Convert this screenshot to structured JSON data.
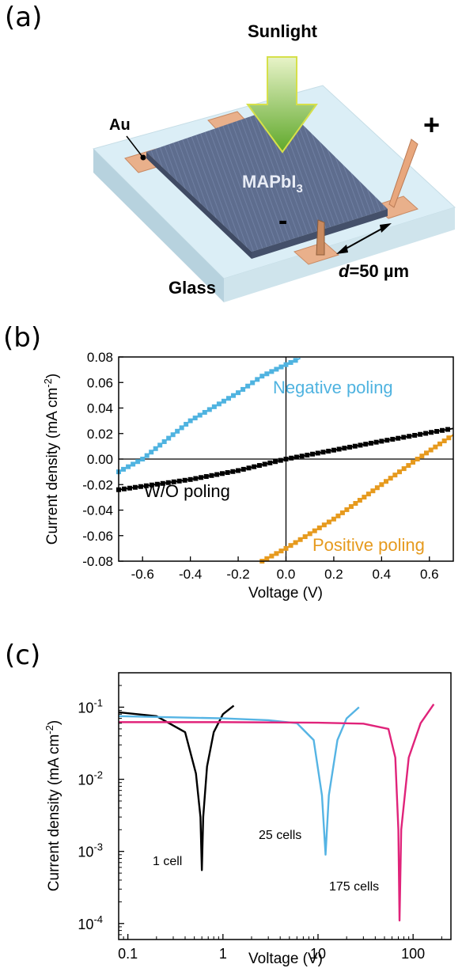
{
  "panel_a": {
    "label": "(a)",
    "sunlight": "Sunlight",
    "au": "Au",
    "material_main": "MAPbI",
    "material_sub": "3",
    "plus": "+",
    "minus": "-",
    "distance_prefix": "d",
    "distance_value": "=50 µm",
    "glass": "Glass",
    "colors": {
      "glass_top": "#dbeef5",
      "glass_side": "#b9d3dd",
      "film": "#5a6a8c",
      "film_side": "#46526c",
      "gold": "#e8b08a",
      "arrow": "#8dc63f",
      "probe": "#e6a77c"
    }
  },
  "panel_b": {
    "label": "(b)",
    "chart_data": {
      "type": "line",
      "xlabel": "Voltage (V)",
      "ylabel_main": "Current density (mA cm",
      "ylabel_sup": "-2",
      "ylabel_end": ")",
      "xlim": [
        -0.7,
        0.7
      ],
      "ylim": [
        -0.08,
        0.08
      ],
      "xticks": [
        "-0.6",
        "-0.4",
        "-0.2",
        "0.0",
        "0.2",
        "0.4",
        "0.6"
      ],
      "xtick_values": [
        -0.6,
        -0.4,
        -0.2,
        0.0,
        0.2,
        0.4,
        0.6
      ],
      "yticks": [
        "0.08",
        "0.06",
        "0.04",
        "0.02",
        "0.00",
        "-0.02",
        "-0.04",
        "-0.06",
        "-0.08"
      ],
      "ytick_values": [
        0.08,
        0.06,
        0.04,
        0.02,
        0.0,
        -0.02,
        -0.04,
        -0.06,
        -0.08
      ],
      "series": [
        {
          "name": "Negative poling",
          "color": "#4fb3e0",
          "x": [
            -0.7,
            -0.6,
            -0.4,
            -0.2,
            -0.1,
            0.0,
            0.06
          ],
          "y": [
            -0.01,
            0.0,
            0.03,
            0.052,
            0.065,
            0.074,
            0.079
          ]
        },
        {
          "name": "W/O poling",
          "color": "#000000",
          "x": [
            -0.7,
            -0.4,
            -0.2,
            0.0,
            0.2,
            0.4,
            0.7
          ],
          "y": [
            -0.024,
            -0.016,
            -0.009,
            0.0,
            0.007,
            0.014,
            0.024
          ]
        },
        {
          "name": "Positive poling",
          "color": "#e69a1e",
          "x": [
            -0.1,
            0.0,
            0.2,
            0.4,
            0.55,
            0.7
          ],
          "y": [
            -0.08,
            -0.07,
            -0.047,
            -0.02,
            0.0,
            0.019
          ]
        }
      ]
    }
  },
  "panel_c": {
    "label": "(c)",
    "chart_data": {
      "type": "line",
      "xscale": "log",
      "yscale": "log",
      "xlabel": "Voltage (V)",
      "ylabel_main": "Current density (mA cm",
      "ylabel_sup": "-2",
      "ylabel_end": ")",
      "xlim": [
        0.08,
        250
      ],
      "ylim": [
        6e-05,
        0.3
      ],
      "xticks": [
        "0.1",
        "1",
        "10",
        "100"
      ],
      "xtick_values": [
        0.1,
        1,
        10,
        100
      ],
      "yticks": [
        {
          "base": "10",
          "exp": "-1",
          "value": 0.1
        },
        {
          "base": "10",
          "exp": "-2",
          "value": 0.01
        },
        {
          "base": "10",
          "exp": "-3",
          "value": 0.001
        },
        {
          "base": "10",
          "exp": "-4",
          "value": 0.0001
        }
      ],
      "series": [
        {
          "name": "1 cell",
          "color": "#000000",
          "x": [
            0.08,
            0.2,
            0.4,
            0.52,
            0.58,
            0.6,
            0.62,
            0.68,
            0.8,
            1.0,
            1.3
          ],
          "y": [
            0.085,
            0.075,
            0.045,
            0.012,
            0.003,
            0.00055,
            0.003,
            0.015,
            0.045,
            0.08,
            0.105
          ]
        },
        {
          "name": "25 cells",
          "color": "#55b4e4",
          "x": [
            0.08,
            1,
            3,
            6,
            9,
            11,
            12,
            13,
            16,
            20,
            27
          ],
          "y": [
            0.075,
            0.07,
            0.066,
            0.06,
            0.035,
            0.006,
            0.0009,
            0.006,
            0.035,
            0.07,
            0.1
          ]
        },
        {
          "name": "175 cells",
          "color": "#e0237a",
          "x": [
            0.08,
            1,
            10,
            30,
            55,
            65,
            70,
            72,
            75,
            90,
            120,
            165
          ],
          "y": [
            0.062,
            0.062,
            0.061,
            0.059,
            0.05,
            0.02,
            0.002,
            0.00011,
            0.002,
            0.02,
            0.06,
            0.11
          ]
        }
      ]
    }
  }
}
